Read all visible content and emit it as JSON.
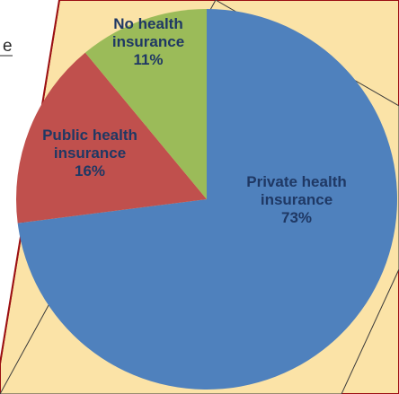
{
  "background_fragment": {
    "text": "e"
  },
  "chart_data": {
    "type": "pie",
    "title": "",
    "slices": [
      {
        "category": "Private health insurance",
        "label_lines": [
          "Private health",
          "insurance",
          "73%"
        ],
        "value": 73,
        "color": "#4F81BD"
      },
      {
        "category": "Public health insurance",
        "label_lines": [
          "Public health",
          "insurance",
          "16%"
        ],
        "value": 16,
        "color": "#C0504D"
      },
      {
        "category": "No health insurance",
        "label_lines": [
          "No health",
          "insurance",
          "11%"
        ],
        "value": 11,
        "color": "#9BBB59"
      }
    ],
    "start_angle_deg": 0,
    "direction": "clockwise",
    "legend": "none",
    "data_labels": "inside"
  }
}
